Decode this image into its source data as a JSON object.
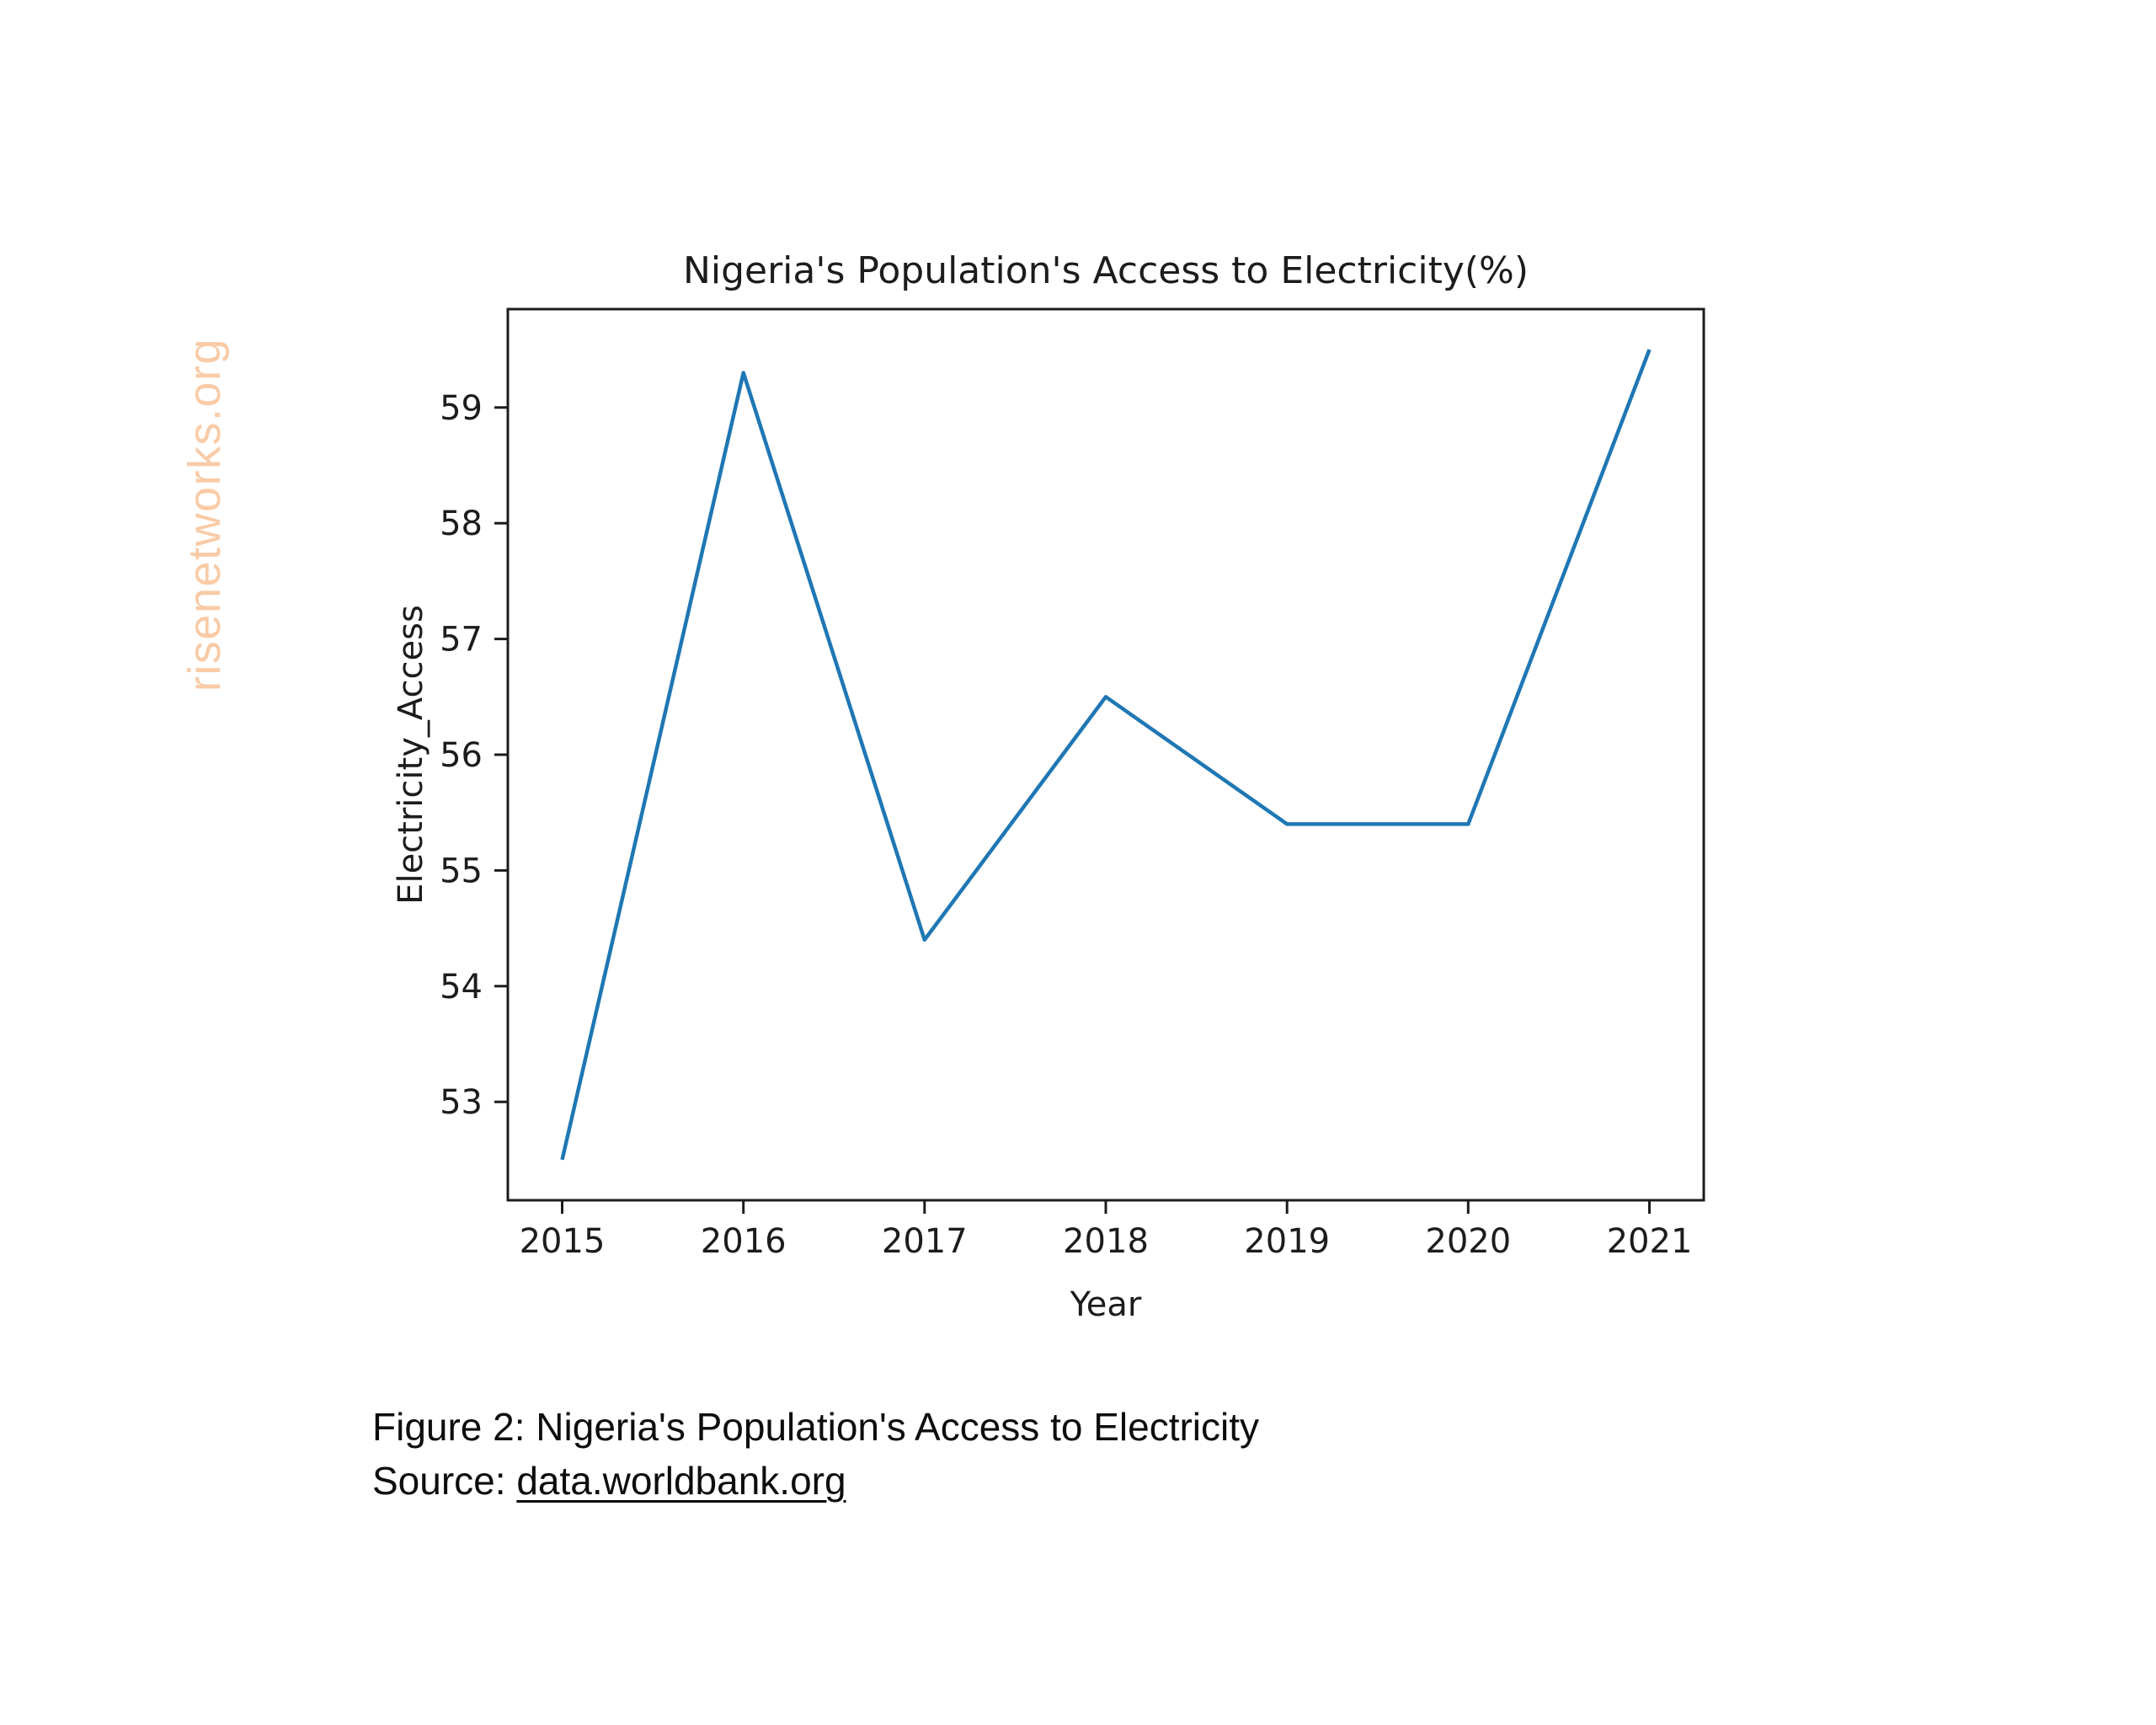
{
  "watermark": {
    "text": "risenetworks.org",
    "color": "#f9cba6"
  },
  "chart_data": {
    "type": "line",
    "title": "Nigeria's Population's Access to Electricity(%)",
    "xlabel": "Year",
    "ylabel": "Electricity_Access",
    "x": [
      2015,
      2016,
      2017,
      2018,
      2019,
      2020,
      2021
    ],
    "series": [
      {
        "name": "Electricity_Access",
        "values": [
          52.5,
          59.3,
          54.4,
          56.5,
          55.4,
          55.4,
          59.5
        ]
      }
    ],
    "xticks": [
      2015,
      2016,
      2017,
      2018,
      2019,
      2020,
      2021
    ],
    "yticks": [
      53,
      54,
      55,
      56,
      57,
      58,
      59
    ],
    "xlim": [
      2014.7,
      2021.3
    ],
    "ylim": [
      52.15,
      59.85
    ],
    "line_color": "#1f77b4",
    "axis_color": "#1c1c1c",
    "grid": false,
    "legend": "none"
  },
  "caption": {
    "line1": "Figure 2: Nigeria's Population's Access to Electricity",
    "source_label": "Source: ",
    "source_link": "data.worldbank.org"
  }
}
